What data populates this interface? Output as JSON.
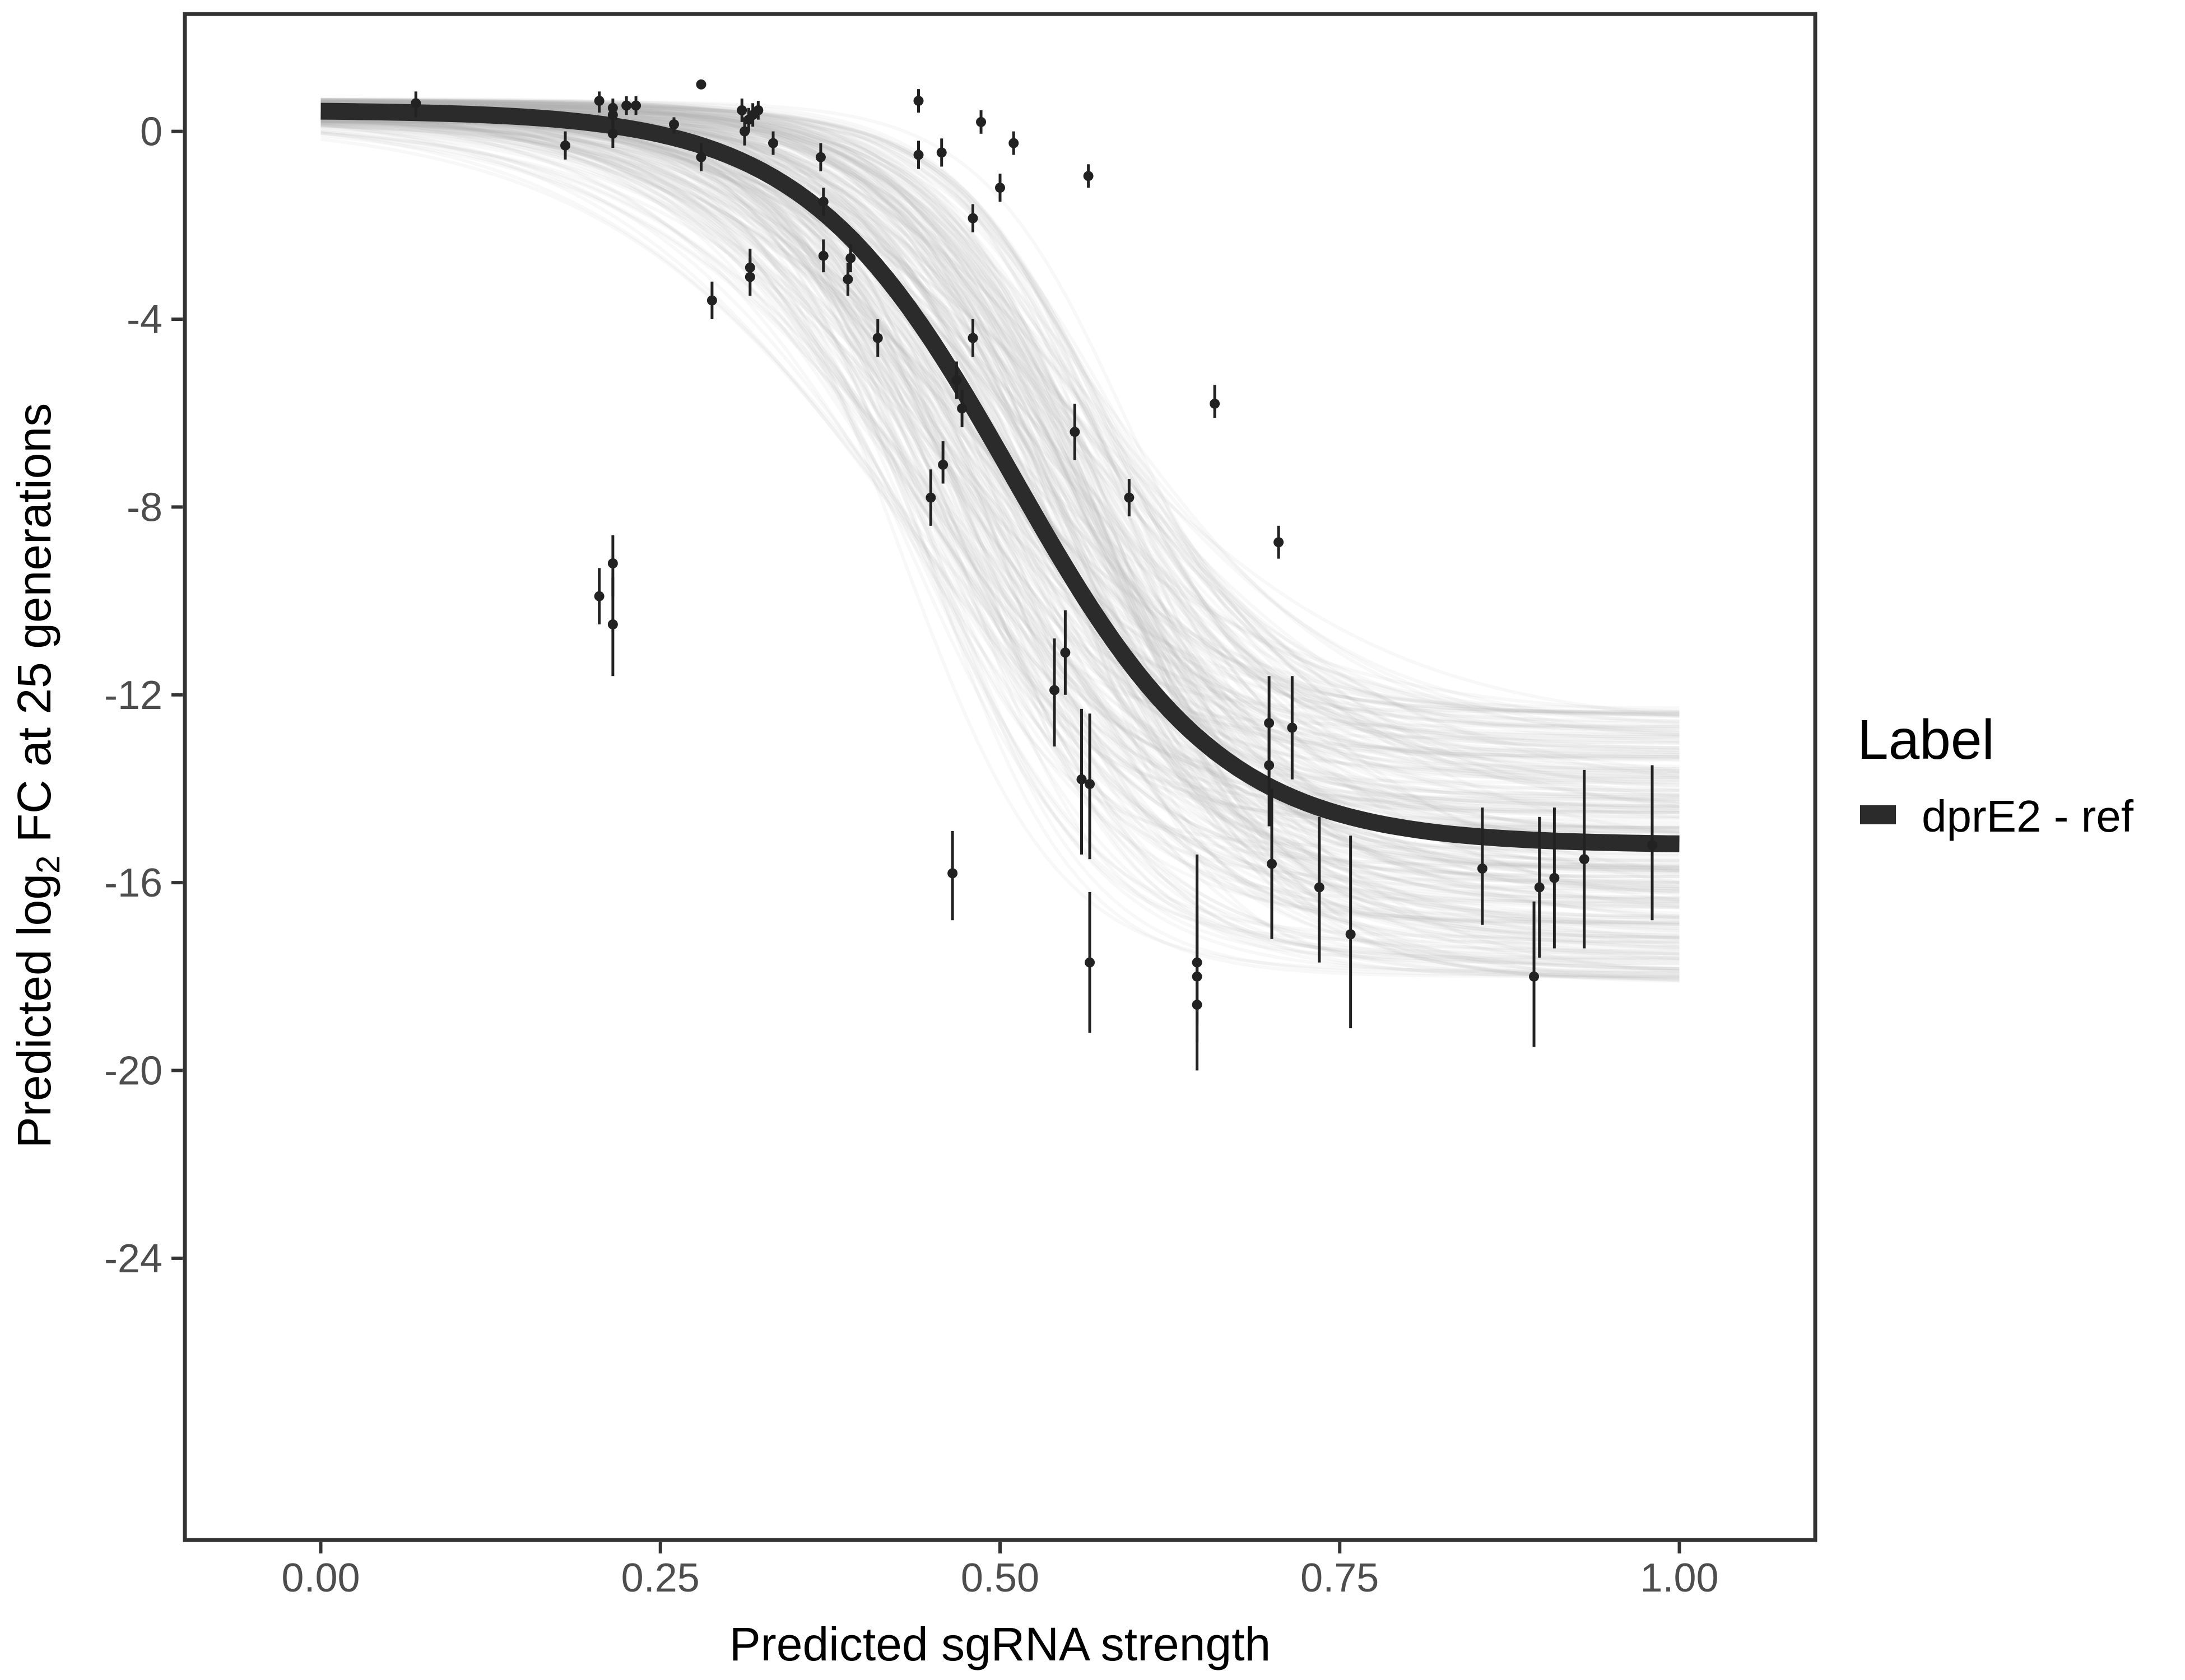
{
  "chart_data": {
    "type": "scatter",
    "xlabel": "Predicted sgRNA strength",
    "ylabel_parts": {
      "prefix": "Predicted  log",
      "sub": "2",
      "suffix": " FC at 25 generations"
    },
    "xlim": [
      -0.1,
      1.1
    ],
    "ylim": [
      -30,
      2.5
    ],
    "x_ticks": [
      0,
      0.25,
      0.5,
      0.75,
      1
    ],
    "x_tick_labels": [
      "0.00",
      "0.25",
      "0.50",
      "0.75",
      "1.00"
    ],
    "y_ticks": [
      0,
      -4,
      -8,
      -12,
      -16,
      -20,
      -24
    ],
    "y_tick_labels": [
      "0",
      "-4",
      "-8",
      "-12",
      "-16",
      "-20",
      "-24"
    ],
    "grid": false,
    "legend": {
      "title": "Label",
      "entries": [
        {
          "name": "dprE2 - ref",
          "color": "#2b2b2b"
        }
      ],
      "position": "right"
    },
    "colors": {
      "fit_line": "#2b2b2b",
      "posterior_band": "#b0b0b0",
      "points": "#222222",
      "frame": "#333333"
    },
    "fit_curve": {
      "top": 0.45,
      "bottom": -15.2,
      "midpoint": 0.51,
      "slope": 13
    },
    "points": [
      {
        "x": 0.07,
        "y": 0.6,
        "lo": 0.3,
        "hi": 0.85
      },
      {
        "x": 0.18,
        "y": -0.3,
        "lo": -0.6,
        "hi": 0.0
      },
      {
        "x": 0.205,
        "y": 0.65,
        "lo": 0.4,
        "hi": 0.85
      },
      {
        "x": 0.205,
        "y": -9.9,
        "lo": -10.5,
        "hi": -9.3
      },
      {
        "x": 0.215,
        "y": 0.5,
        "lo": 0.3,
        "hi": 0.7
      },
      {
        "x": 0.215,
        "y": 0.35,
        "lo": 0.1,
        "hi": 0.6
      },
      {
        "x": 0.215,
        "y": -0.05,
        "lo": -0.35,
        "hi": 0.25
      },
      {
        "x": 0.215,
        "y": -9.2,
        "lo": -9.9,
        "hi": -8.6
      },
      {
        "x": 0.215,
        "y": -10.5,
        "lo": -11.6,
        "hi": -9.5
      },
      {
        "x": 0.225,
        "y": 0.55,
        "lo": 0.35,
        "hi": 0.75
      },
      {
        "x": 0.232,
        "y": 0.55,
        "lo": 0.35,
        "hi": 0.75
      },
      {
        "x": 0.26,
        "y": 0.15,
        "lo": -0.05,
        "hi": 0.3
      },
      {
        "x": 0.28,
        "y": 1.0,
        "lo": 0.9,
        "hi": 1.1
      },
      {
        "x": 0.28,
        "y": -0.55,
        "lo": -0.85,
        "hi": -0.25
      },
      {
        "x": 0.288,
        "y": -3.6,
        "lo": -4.0,
        "hi": -3.2
      },
      {
        "x": 0.31,
        "y": 0.45,
        "lo": 0.2,
        "hi": 0.7
      },
      {
        "x": 0.312,
        "y": 0.0,
        "lo": -0.3,
        "hi": 0.3
      },
      {
        "x": 0.315,
        "y": 0.25,
        "lo": 0.0,
        "hi": 0.5
      },
      {
        "x": 0.316,
        "y": -2.9,
        "lo": -3.2,
        "hi": -2.5
      },
      {
        "x": 0.316,
        "y": -3.1,
        "lo": -3.5,
        "hi": -2.7
      },
      {
        "x": 0.318,
        "y": 0.35,
        "lo": 0.1,
        "hi": 0.6
      },
      {
        "x": 0.322,
        "y": 0.45,
        "lo": 0.25,
        "hi": 0.65
      },
      {
        "x": 0.333,
        "y": -0.25,
        "lo": -0.5,
        "hi": 0.0
      },
      {
        "x": 0.368,
        "y": -0.55,
        "lo": -0.85,
        "hi": -0.25
      },
      {
        "x": 0.37,
        "y": -1.5,
        "lo": -1.8,
        "hi": -1.2
      },
      {
        "x": 0.37,
        "y": -2.65,
        "lo": -3.0,
        "hi": -2.3
      },
      {
        "x": 0.388,
        "y": -3.15,
        "lo": -3.5,
        "hi": -2.8
      },
      {
        "x": 0.39,
        "y": -2.7,
        "lo": -3.0,
        "hi": -2.4
      },
      {
        "x": 0.41,
        "y": -4.4,
        "lo": -4.8,
        "hi": -4.0
      },
      {
        "x": 0.44,
        "y": 0.65,
        "lo": 0.4,
        "hi": 0.9
      },
      {
        "x": 0.44,
        "y": -0.5,
        "lo": -0.8,
        "hi": -0.2
      },
      {
        "x": 0.449,
        "y": -7.8,
        "lo": -8.4,
        "hi": -7.2
      },
      {
        "x": 0.457,
        "y": -0.45,
        "lo": -0.75,
        "hi": -0.15
      },
      {
        "x": 0.458,
        "y": -7.1,
        "lo": -7.5,
        "hi": -6.6
      },
      {
        "x": 0.465,
        "y": -15.8,
        "lo": -16.8,
        "hi": -14.9
      },
      {
        "x": 0.468,
        "y": -5.3,
        "lo": -5.7,
        "hi": -4.9
      },
      {
        "x": 0.472,
        "y": -5.9,
        "lo": -6.3,
        "hi": -5.5
      },
      {
        "x": 0.48,
        "y": -1.85,
        "lo": -2.15,
        "hi": -1.55
      },
      {
        "x": 0.48,
        "y": -4.4,
        "lo": -4.8,
        "hi": -4.0
      },
      {
        "x": 0.486,
        "y": 0.2,
        "lo": -0.05,
        "hi": 0.45
      },
      {
        "x": 0.5,
        "y": -1.2,
        "lo": -1.5,
        "hi": -0.9
      },
      {
        "x": 0.51,
        "y": -0.25,
        "lo": -0.5,
        "hi": 0.0
      },
      {
        "x": 0.54,
        "y": -11.9,
        "lo": -13.1,
        "hi": -10.8
      },
      {
        "x": 0.548,
        "y": -11.1,
        "lo": -12.0,
        "hi": -10.2
      },
      {
        "x": 0.555,
        "y": -6.4,
        "lo": -7.0,
        "hi": -5.8
      },
      {
        "x": 0.56,
        "y": -13.8,
        "lo": -15.4,
        "hi": -12.3
      },
      {
        "x": 0.565,
        "y": -0.95,
        "lo": -1.2,
        "hi": -0.7
      },
      {
        "x": 0.566,
        "y": -13.9,
        "lo": -15.5,
        "hi": -12.4
      },
      {
        "x": 0.566,
        "y": -17.7,
        "lo": -19.2,
        "hi": -16.2
      },
      {
        "x": 0.595,
        "y": -7.8,
        "lo": -8.2,
        "hi": -7.4
      },
      {
        "x": 0.645,
        "y": -17.7,
        "lo": -19.0,
        "hi": -16.5
      },
      {
        "x": 0.645,
        "y": -18.0,
        "lo": -19.4,
        "hi": -16.8
      },
      {
        "x": 0.645,
        "y": -18.6,
        "lo": -20.0,
        "hi": -15.4
      },
      {
        "x": 0.658,
        "y": -5.8,
        "lo": -6.1,
        "hi": -5.4
      },
      {
        "x": 0.698,
        "y": -12.6,
        "lo": -13.7,
        "hi": -11.6
      },
      {
        "x": 0.698,
        "y": -13.5,
        "lo": -14.8,
        "hi": -12.4
      },
      {
        "x": 0.7,
        "y": -15.6,
        "lo": -17.2,
        "hi": -14.0
      },
      {
        "x": 0.705,
        "y": -8.75,
        "lo": -9.1,
        "hi": -8.4
      },
      {
        "x": 0.715,
        "y": -12.7,
        "lo": -13.8,
        "hi": -11.6
      },
      {
        "x": 0.735,
        "y": -16.1,
        "lo": -17.7,
        "hi": -14.6
      },
      {
        "x": 0.758,
        "y": -17.1,
        "lo": -19.1,
        "hi": -15.0
      },
      {
        "x": 0.855,
        "y": -15.7,
        "lo": -16.9,
        "hi": -14.4
      },
      {
        "x": 0.893,
        "y": -18.0,
        "lo": -19.5,
        "hi": -16.4
      },
      {
        "x": 0.897,
        "y": -16.1,
        "lo": -17.6,
        "hi": -14.6
      },
      {
        "x": 0.908,
        "y": -15.9,
        "lo": -17.4,
        "hi": -14.4
      },
      {
        "x": 0.93,
        "y": -15.5,
        "lo": -17.4,
        "hi": -13.6
      },
      {
        "x": 0.98,
        "y": -15.2,
        "lo": -16.8,
        "hi": -13.5
      }
    ]
  }
}
